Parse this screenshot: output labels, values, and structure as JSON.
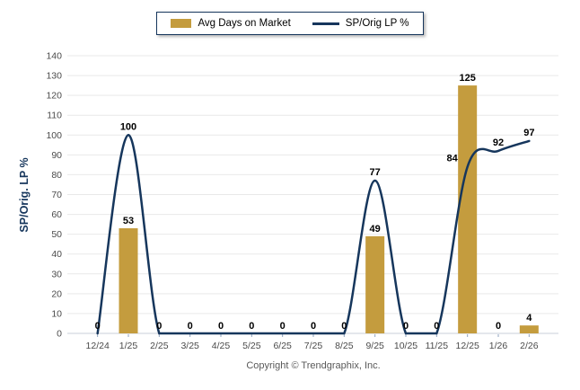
{
  "footer": {
    "text": "Copyright © Trendgraphix, Inc."
  },
  "chart_data": {
    "type": "combo",
    "title": "",
    "xlabel": "",
    "ylabel": "SP/Orig. LP %",
    "ylim": [
      0,
      140
    ],
    "ytick_step": 10,
    "grid": true,
    "legend_position": "top",
    "categories": [
      "12/24",
      "1/25",
      "2/25",
      "3/25",
      "4/25",
      "5/25",
      "6/25",
      "7/25",
      "8/25",
      "9/25",
      "10/25",
      "11/25",
      "12/25",
      "1/26",
      "2/26"
    ],
    "series": [
      {
        "name": "Avg Days on Market",
        "type": "bar",
        "color": "#C49C3E",
        "values": [
          0,
          53,
          0,
          0,
          0,
          0,
          0,
          0,
          0,
          49,
          0,
          0,
          125,
          0,
          4
        ]
      },
      {
        "name": "SP/Orig LP %",
        "type": "line",
        "color": "#16365C",
        "values": [
          0,
          100,
          0,
          0,
          0,
          0,
          0,
          0,
          0,
          77,
          0,
          0,
          84,
          92,
          97
        ]
      }
    ],
    "line_label_offsets": {
      "12": {
        "dx": -17,
        "dy": 0
      }
    },
    "colors": {
      "accent": "#16365C",
      "bar": "#C49C3E",
      "grid": "#E9E9E9",
      "axis_line": "#C9CFD8",
      "category_tick": "#8FA3BF",
      "tick_label": "#4A4A4A",
      "data_label": "#000000",
      "footer_text": "#595959",
      "background": "#FFFFFF"
    }
  }
}
